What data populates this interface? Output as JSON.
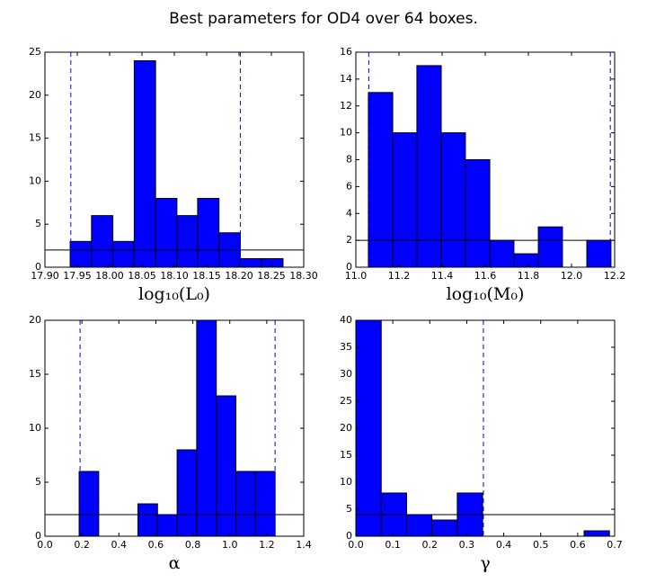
{
  "title": "Best parameters for OD4 over 64 boxes.",
  "chart_data": [
    {
      "type": "histogram",
      "xlabel": "log₁₀(L₀)",
      "color": "#0000ff",
      "bins": [
        17.939,
        17.972,
        18.005,
        18.038,
        18.071,
        18.104,
        18.136,
        18.169,
        18.202,
        18.235,
        18.268
      ],
      "values": [
        3,
        6,
        3,
        24,
        8,
        6,
        8,
        4,
        1,
        1
      ],
      "xlim": [
        17.9,
        18.3
      ],
      "xticks": [
        {
          "value": 17.9,
          "label": "17.90"
        },
        17.95,
        {
          "value": 18.0,
          "label": "18.00"
        },
        18.05,
        {
          "value": 18.1,
          "label": "18.10"
        },
        18.15,
        {
          "value": 18.2,
          "label": "18.20"
        },
        18.25,
        {
          "value": 18.3,
          "label": "18.30"
        }
      ],
      "ylim": [
        0,
        25
      ],
      "yticks": [
        0,
        5,
        10,
        15,
        20,
        25
      ],
      "vlines": [
        17.94,
        18.202
      ],
      "hline": 2
    },
    {
      "type": "histogram",
      "xlabel": "log₁₀(M₀)",
      "color": "#0000ff",
      "bins": [
        11.058,
        11.171,
        11.283,
        11.396,
        11.508,
        11.621,
        11.733,
        11.846,
        11.958,
        12.071,
        12.183
      ],
      "values": [
        13,
        10,
        15,
        10,
        8,
        2,
        1,
        3,
        0,
        2
      ],
      "xlim": [
        11.0,
        12.2
      ],
      "xticks": [
        {
          "value": 11.0,
          "label": "11.0"
        },
        11.2,
        11.4,
        11.6,
        11.8,
        {
          "value": 12.0,
          "label": "12.0"
        },
        12.2
      ],
      "ylim": [
        0,
        16
      ],
      "yticks": [
        0,
        2,
        4,
        6,
        8,
        10,
        12,
        14,
        16
      ],
      "vlines": [
        11.06,
        12.18
      ],
      "hline": 2
    },
    {
      "type": "histogram",
      "xlabel": "α",
      "color": "#0000ff",
      "bins": [
        0.185,
        0.291,
        0.397,
        0.503,
        0.609,
        0.715,
        0.821,
        0.927,
        1.033,
        1.139,
        1.245
      ],
      "values": [
        6,
        0,
        0,
        3,
        2,
        8,
        20,
        13,
        6,
        6
      ],
      "xlim": [
        0,
        1.4
      ],
      "xticks": [
        {
          "value": 0,
          "label": "0.0"
        },
        0.2,
        0.4,
        0.6,
        0.8,
        {
          "value": 1.0,
          "label": "1.0"
        },
        1.2,
        1.4
      ],
      "ylim": [
        0,
        20
      ],
      "yticks": [
        0,
        5,
        10,
        15,
        20
      ],
      "vlines": [
        0.19,
        1.245
      ],
      "hline": 2
    },
    {
      "type": "histogram",
      "xlabel": "γ",
      "color": "#0000ff",
      "bins": [
        0,
        0.0686,
        0.1372,
        0.2058,
        0.2744,
        0.343,
        0.4116,
        0.4802,
        0.5488,
        0.6174,
        0.686
      ],
      "values": [
        40,
        8,
        4,
        3,
        8,
        0,
        0,
        0,
        0,
        1
      ],
      "xlim": [
        0,
        0.7
      ],
      "xticks": [
        {
          "value": 0,
          "label": "0.0"
        },
        0.1,
        0.2,
        0.3,
        0.4,
        0.5,
        0.6,
        0.7
      ],
      "ylim": [
        0,
        40
      ],
      "yticks": [
        0,
        5,
        10,
        15,
        20,
        25,
        30,
        35,
        40
      ],
      "vlines": [
        0.345
      ],
      "hline": 4
    }
  ]
}
